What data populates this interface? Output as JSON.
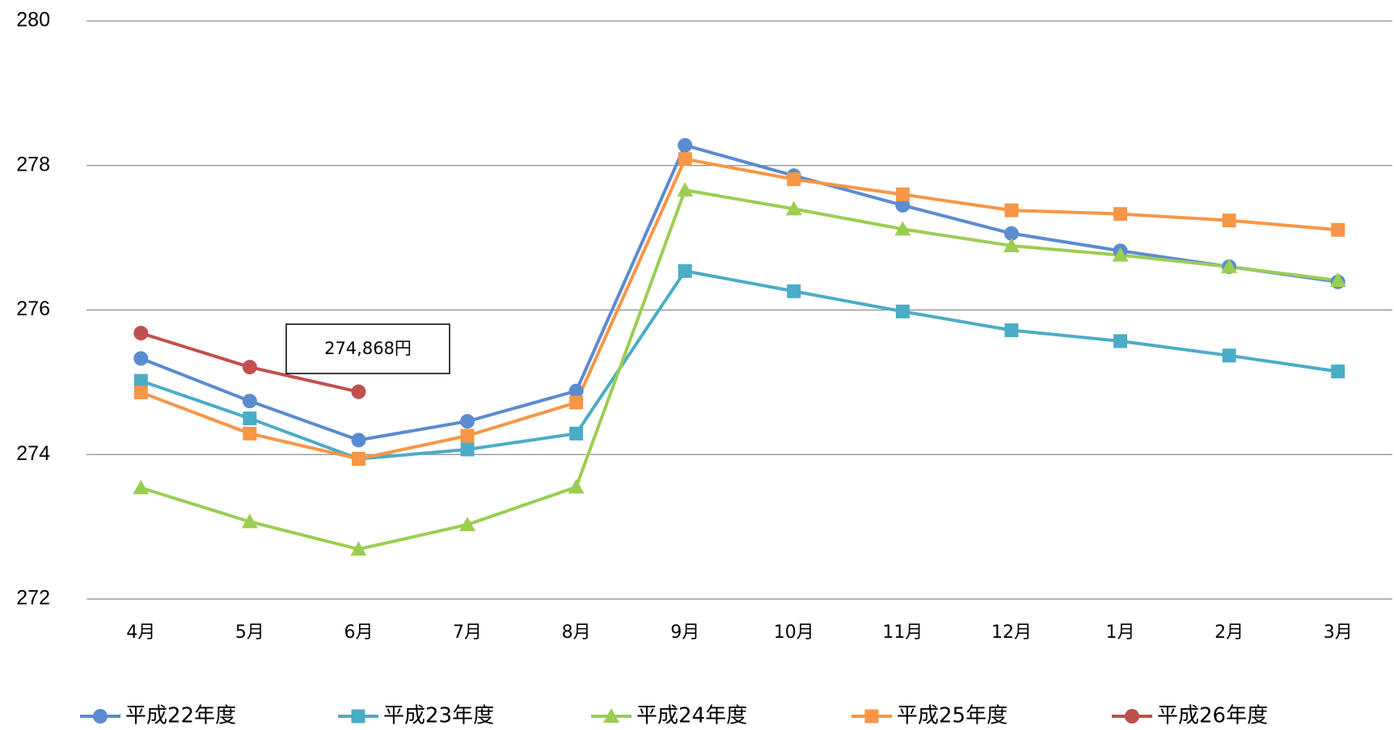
{
  "chart_data": {
    "type": "line",
    "categories": [
      "4月",
      "5月",
      "6月",
      "7月",
      "8月",
      "9月",
      "10月",
      "11月",
      "12月",
      "1月",
      "2月",
      "3月"
    ],
    "series": [
      {
        "name": "平成22年度",
        "color": "#5b8bd0",
        "marker": "circle",
        "values": [
          275.33,
          274.74,
          274.2,
          274.46,
          274.88,
          278.28,
          277.86,
          277.45,
          277.06,
          276.82,
          276.6,
          276.39
        ]
      },
      {
        "name": "平成23年度",
        "color": "#4bacc6",
        "marker": "square",
        "values": [
          275.02,
          274.5,
          273.94,
          274.07,
          274.29,
          276.54,
          276.26,
          275.98,
          275.72,
          275.57,
          275.37,
          275.15
        ]
      },
      {
        "name": "平成24年度",
        "color": "#9bcd52",
        "marker": "triangle",
        "values": [
          273.54,
          273.07,
          272.69,
          273.03,
          273.55,
          277.66,
          277.4,
          277.12,
          276.89,
          276.76,
          276.6,
          276.41
        ]
      },
      {
        "name": "平成25年度",
        "color": "#f79646",
        "marker": "square",
        "values": [
          274.86,
          274.29,
          273.94,
          274.26,
          274.72,
          278.09,
          277.81,
          277.6,
          277.38,
          277.33,
          277.24,
          277.11
        ]
      },
      {
        "name": "平成26年度",
        "color": "#c0504d",
        "marker": "circle",
        "values": [
          275.68,
          275.21,
          274.868,
          null,
          null,
          null,
          null,
          null,
          null,
          null,
          null,
          null
        ]
      }
    ],
    "annotation": "274,868円",
    "ylim": [
      272,
      280
    ],
    "yticks": [
      272,
      274,
      276,
      278,
      280
    ],
    "grid": true,
    "legend": "bottom"
  }
}
